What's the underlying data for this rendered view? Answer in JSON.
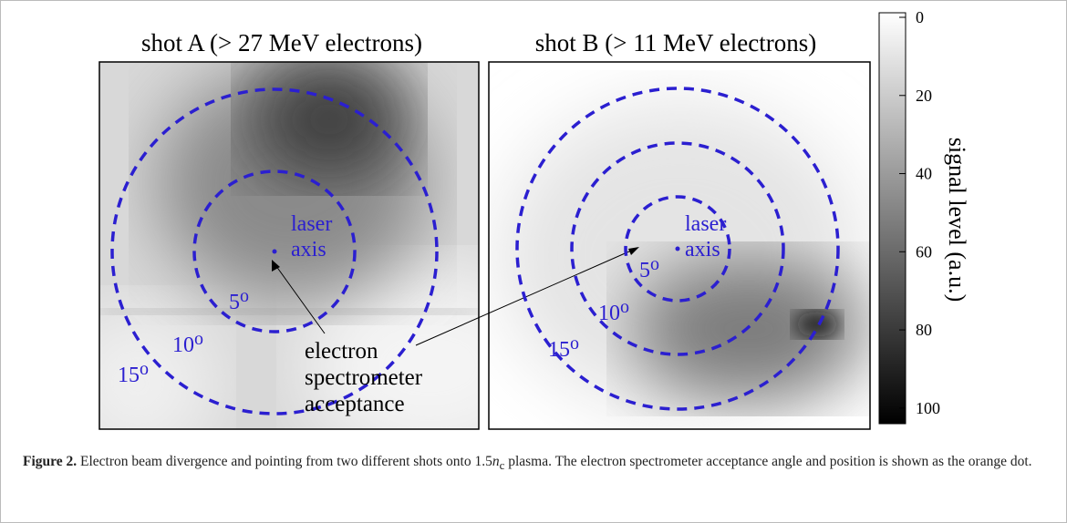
{
  "panels": [
    {
      "title": "shot A (> 27 MeV electrons)",
      "laser_label": [
        "laser",
        "axis"
      ],
      "rings": [
        {
          "value": "5",
          "unit": "o"
        },
        {
          "value": "10",
          "unit": "o"
        },
        {
          "value": "15",
          "unit": "o"
        }
      ]
    },
    {
      "title": "shot B (> 11 MeV electrons)",
      "laser_label": [
        "laser",
        "axis"
      ],
      "rings": [
        {
          "value": "5",
          "unit": "o"
        },
        {
          "value": "10",
          "unit": "o"
        },
        {
          "value": "15",
          "unit": "o"
        }
      ]
    }
  ],
  "acceptance_label": [
    "electron",
    "spectrometer",
    "acceptance"
  ],
  "colorbar": {
    "label": "signal level (a.u.)",
    "range": [
      0,
      104
    ],
    "ticks": [
      0,
      20,
      40,
      60,
      80,
      100
    ]
  },
  "caption": {
    "label": "Figure 2.",
    "text1": "Electron beam divergence and pointing from two different shots onto 1.5",
    "var": "n",
    "sub": "c",
    "text2": " plasma. The electron spectrometer acceptance angle and position is shown as the orange dot."
  }
}
